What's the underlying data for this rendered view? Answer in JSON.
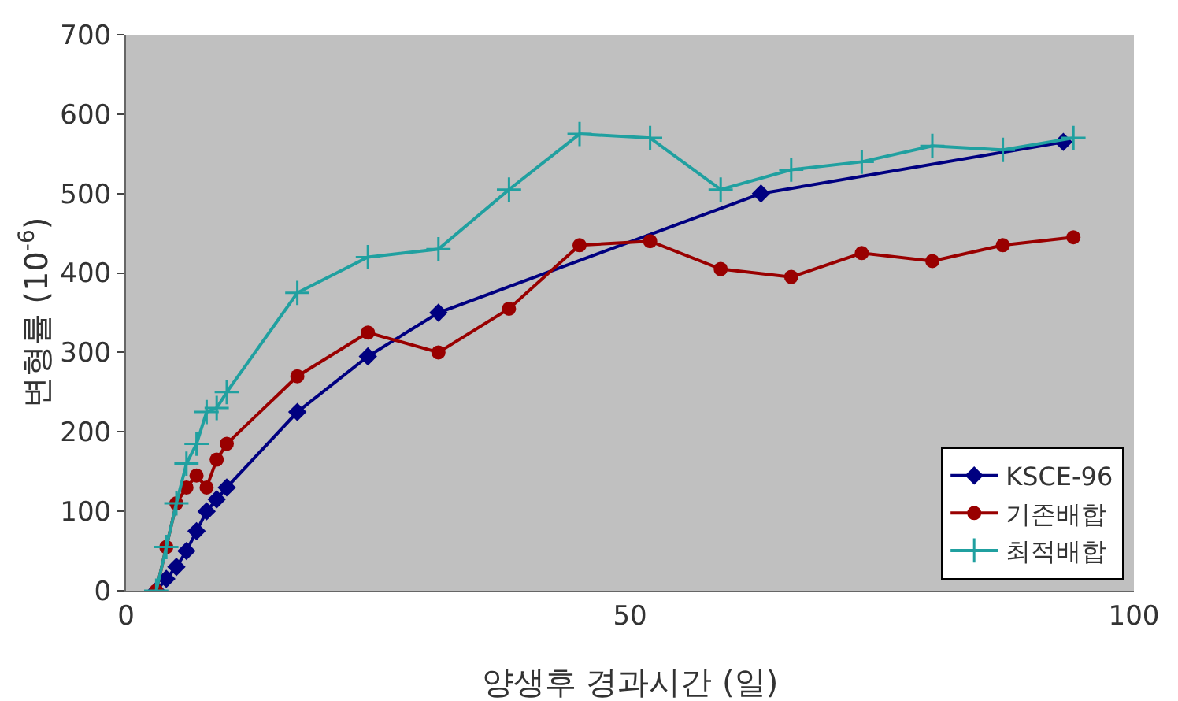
{
  "chart_data": {
    "type": "line",
    "xlabel": "양생후 경과시간 (일)",
    "ylabel": "변형률 (10$^{-6}$)",
    "xlim": [
      0,
      100
    ],
    "xticks": [
      0,
      50,
      100
    ],
    "ylim": [
      0,
      700
    ],
    "yticks": [
      0,
      100,
      200,
      300,
      400,
      500,
      600,
      700
    ],
    "grid": false,
    "legend": "bottom right",
    "series": [
      {
        "name": "KSCE-96",
        "color": "#000080",
        "marker": "diamond",
        "x": [
          3,
          4,
          5,
          6,
          7,
          8,
          9,
          10,
          17,
          24,
          31,
          63,
          93
        ],
        "values": [
          0,
          15,
          30,
          50,
          75,
          100,
          115,
          130,
          225,
          295,
          350,
          500,
          565
        ]
      },
      {
        "name": "기존배합",
        "color": "#990000",
        "marker": "circle",
        "x": [
          3,
          4,
          5,
          6,
          7,
          8,
          9,
          10,
          17,
          24,
          31,
          38,
          45,
          52,
          59,
          66,
          73,
          80,
          87,
          94
        ],
        "values": [
          0,
          55,
          110,
          130,
          145,
          130,
          165,
          185,
          270,
          325,
          300,
          355,
          435,
          440,
          405,
          395,
          425,
          415,
          435,
          445
        ]
      },
      {
        "name": "최적배합",
        "color": "#20a0a0",
        "marker": "cross",
        "x": [
          3,
          4,
          5,
          6,
          7,
          8,
          9,
          10,
          17,
          24,
          31,
          38,
          45,
          52,
          59,
          66,
          73,
          80,
          87,
          94
        ],
        "values": [
          0,
          55,
          110,
          160,
          185,
          225,
          230,
          250,
          375,
          420,
          430,
          505,
          575,
          570,
          505,
          530,
          540,
          560,
          555,
          570
        ]
      }
    ]
  }
}
